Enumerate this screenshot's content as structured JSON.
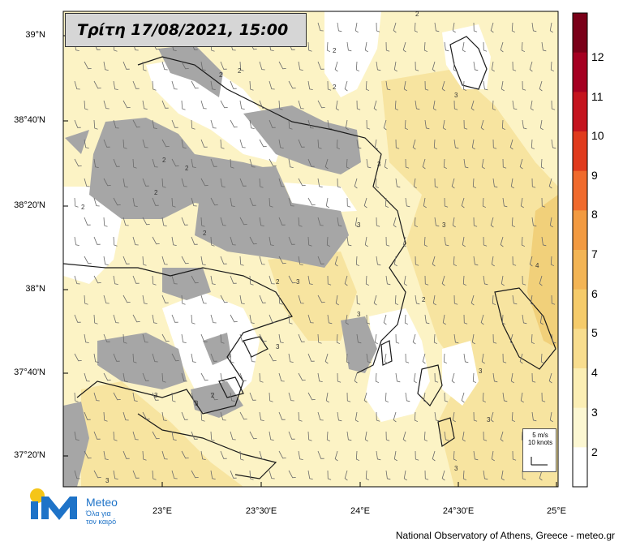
{
  "title": "Τρίτη 17/08/2021, 15:00",
  "lat_labels": [
    "39°N",
    "38°40'N",
    "38°20'N",
    "38°N",
    "37°40'N",
    "37°20'N"
  ],
  "lon_labels": [
    "23°E",
    "23°30'E",
    "24°E",
    "24°30'E",
    "25°E"
  ],
  "colorbar": {
    "labels": [
      "12",
      "11",
      "10",
      "9",
      "8",
      "7",
      "6",
      "5",
      "4",
      "3",
      "2"
    ],
    "colors": [
      "#7a0018",
      "#a50021",
      "#c4141e",
      "#e03a1c",
      "#f06a2c",
      "#f29a40",
      "#f3b454",
      "#f5cb6a",
      "#f8dd8e",
      "#fbeeb4",
      "#fcf7d2",
      "#ffffff"
    ]
  },
  "field_colors": {
    "base": "#fcf3c5",
    "stronger": "#f7e4a0",
    "strongest": "#f1d07a",
    "calm": "#ffffff",
    "terrain_mask": "#a6a6a6"
  },
  "contour_labels": [
    "2",
    "2",
    "2",
    "2",
    "2",
    "2",
    "2",
    "2",
    "2",
    "2",
    "2",
    "2",
    "2",
    "2",
    "3",
    "3",
    "3",
    "3",
    "3",
    "3",
    "3",
    "3",
    "3",
    "3",
    "3",
    "3",
    "3",
    "4"
  ],
  "wind_legend": {
    "line1": "5 m/s",
    "line2": "10 knots"
  },
  "logo": {
    "brand": "Meteo",
    "tagline_1": "Όλα για",
    "tagline_2": "τον καιρό"
  },
  "footer": "National Observatory of Athens, Greece - meteo.gr"
}
